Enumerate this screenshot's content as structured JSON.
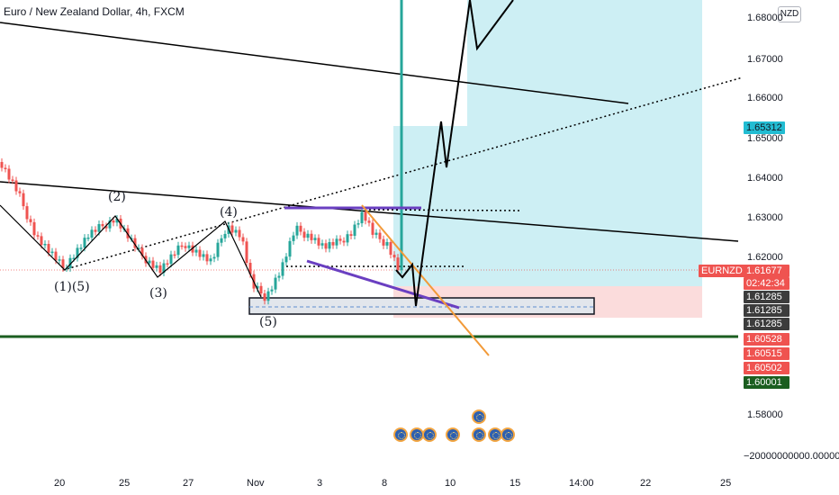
{
  "header": {
    "title": "Euro / New Zealand Dollar, 4h, FXCM",
    "currency": "NZD"
  },
  "price_axis": {
    "ticks": [
      "1.68000",
      "1.67000",
      "1.66000",
      "1.65000",
      "1.64000",
      "1.63000",
      "1.62000",
      "1.58000",
      "−20000000000.00000"
    ],
    "target_label": "1.65312",
    "symbol_tag": "EURNZD",
    "last_price": "1.61677",
    "countdown": "02:42:34",
    "level_labels": [
      "1.61285",
      "1.61285",
      "1.61285"
    ],
    "red_labels": [
      "1.60528",
      "1.60515",
      "1.60502"
    ],
    "green_label": "1.60001"
  },
  "time_axis": {
    "ticks": [
      "20",
      "25",
      "27",
      "Nov",
      "3",
      "8",
      "10",
      "15",
      "14:00",
      "22",
      "25"
    ]
  },
  "waves": [
    "(1)(5)",
    "(2)",
    "(3)",
    "(4)",
    "(5)"
  ],
  "colors": {
    "up_candle": "#26a69a",
    "down_candle": "#ef5350",
    "target_zone": "#cdeff4",
    "stop_zone": "#fbdcdc",
    "support_line": "#1b5e20",
    "purple_line": "#6a3fc1",
    "orange_line": "#f29a38",
    "last_price_tag": "#ef5350",
    "target_tag": "#22bcd2"
  },
  "icons": {
    "event_markers": "flag-event-icon"
  }
}
